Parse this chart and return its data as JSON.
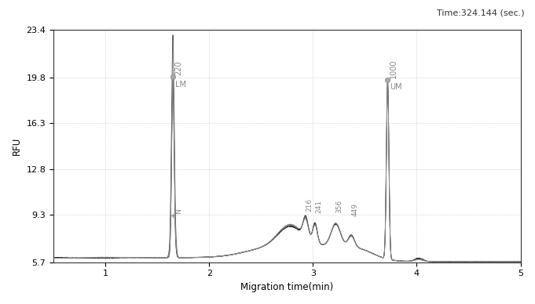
{
  "title": "Time:324.144 (sec.)",
  "xlabel": "Migration time(min)",
  "ylabel": "RFU",
  "xlim": [
    0.5,
    5.0
  ],
  "ylim": [
    5.7,
    23.4
  ],
  "yticks": [
    5.7,
    9.3,
    12.8,
    16.3,
    19.8,
    23.4
  ],
  "xticks": [
    1.0,
    2.0,
    3.0,
    4.0,
    5.0
  ],
  "background_color": "#ffffff",
  "grid_color": "#bbbbbb",
  "baseline": 6.05,
  "peak1_x": 1.65,
  "peak1_y": 19.82,
  "peak1_sigma": 0.012,
  "peak2_x": 3.72,
  "peak2_y": 19.6,
  "peak2_sigma": 0.012,
  "n_marker_x": 1.65,
  "n_marker_y": 9.28,
  "hump_baseline": 7.4,
  "label_color": "#888888",
  "marker_color": "#aaaaaa",
  "line_colors": [
    "#111111",
    "#555555",
    "#888888"
  ]
}
